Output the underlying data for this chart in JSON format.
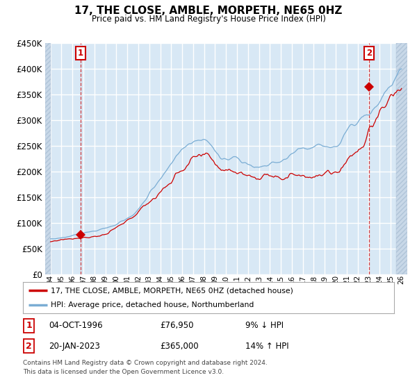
{
  "title": "17, THE CLOSE, AMBLE, MORPETH, NE65 0HZ",
  "subtitle": "Price paid vs. HM Land Registry's House Price Index (HPI)",
  "legend_line1": "17, THE CLOSE, AMBLE, MORPETH, NE65 0HZ (detached house)",
  "legend_line2": "HPI: Average price, detached house, Northumberland",
  "sale1_date": "04-OCT-1996",
  "sale1_price": "£76,950",
  "sale1_hpi": "9% ↓ HPI",
  "sale2_date": "20-JAN-2023",
  "sale2_price": "£365,000",
  "sale2_hpi": "14% ↑ HPI",
  "footnote1": "Contains HM Land Registry data © Crown copyright and database right 2024.",
  "footnote2": "This data is licensed under the Open Government Licence v3.0.",
  "sale1_year": 1996.75,
  "sale2_year": 2023.05,
  "sale1_value": 76950,
  "sale2_value": 365000,
  "ylim_max": 450000,
  "xlim_min": 1993.5,
  "xlim_max": 2026.5,
  "hpi_color": "#7aadd4",
  "price_color": "#cc0000",
  "bg_color": "#d8e8f5",
  "grid_color": "#c8d8e8",
  "hatch_color": "#b0c8e0"
}
